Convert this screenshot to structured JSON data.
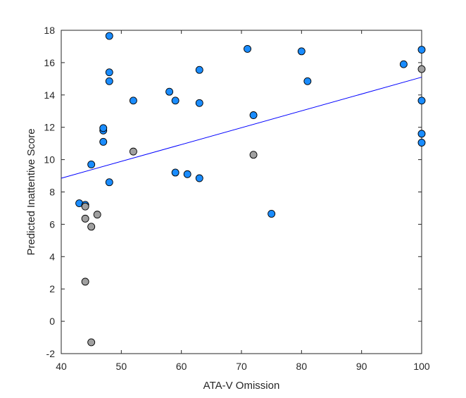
{
  "chart_data": {
    "type": "scatter",
    "title": "",
    "xlabel": "ATA-V Omission",
    "ylabel": "Predicted Inattentive Score",
    "xlim": [
      40,
      100
    ],
    "ylim": [
      -2,
      18
    ],
    "xticks": [
      40,
      50,
      60,
      70,
      80,
      90,
      100
    ],
    "yticks": [
      -2,
      0,
      2,
      4,
      6,
      8,
      10,
      12,
      14,
      16,
      18
    ],
    "grid": false,
    "legend": "none",
    "colors": {
      "blue_points": "#1a8cff",
      "gray_points": "#a0a0a0",
      "point_edge": "#000000",
      "fit_line": "#0000ff",
      "axis": "#262626"
    },
    "series": [
      {
        "marker_color": "blue",
        "points": [
          {
            "x": 43,
            "y": 7.3
          },
          {
            "x": 44,
            "y": 7.2
          },
          {
            "x": 45,
            "y": 9.7
          },
          {
            "x": 47,
            "y": 11.1
          },
          {
            "x": 47,
            "y": 11.8
          },
          {
            "x": 47,
            "y": 11.95
          },
          {
            "x": 48,
            "y": 17.65
          },
          {
            "x": 48,
            "y": 15.4
          },
          {
            "x": 48,
            "y": 14.85
          },
          {
            "x": 48,
            "y": 8.6
          },
          {
            "x": 52,
            "y": 13.65
          },
          {
            "x": 58,
            "y": 14.2
          },
          {
            "x": 59,
            "y": 13.65
          },
          {
            "x": 59,
            "y": 9.2
          },
          {
            "x": 61,
            "y": 9.1
          },
          {
            "x": 63,
            "y": 15.55
          },
          {
            "x": 63,
            "y": 13.5
          },
          {
            "x": 63,
            "y": 8.85
          },
          {
            "x": 71,
            "y": 16.85
          },
          {
            "x": 72,
            "y": 12.75
          },
          {
            "x": 75,
            "y": 6.65
          },
          {
            "x": 80,
            "y": 16.7
          },
          {
            "x": 81,
            "y": 14.85
          },
          {
            "x": 97,
            "y": 15.9
          },
          {
            "x": 100,
            "y": 16.8
          },
          {
            "x": 100,
            "y": 13.65
          },
          {
            "x": 100,
            "y": 11.6
          },
          {
            "x": 100,
            "y": 11.05
          }
        ]
      },
      {
        "marker_color": "gray",
        "points": [
          {
            "x": 44,
            "y": 7.1
          },
          {
            "x": 44,
            "y": 6.35
          },
          {
            "x": 44,
            "y": 2.45
          },
          {
            "x": 45,
            "y": 5.85
          },
          {
            "x": 45,
            "y": -1.3
          },
          {
            "x": 46,
            "y": 6.6
          },
          {
            "x": 52,
            "y": 10.5
          },
          {
            "x": 72,
            "y": 10.3
          },
          {
            "x": 100,
            "y": 15.6
          }
        ]
      }
    ],
    "fit_line": {
      "x": [
        40,
        100
      ],
      "y": [
        8.85,
        15.1
      ]
    }
  }
}
